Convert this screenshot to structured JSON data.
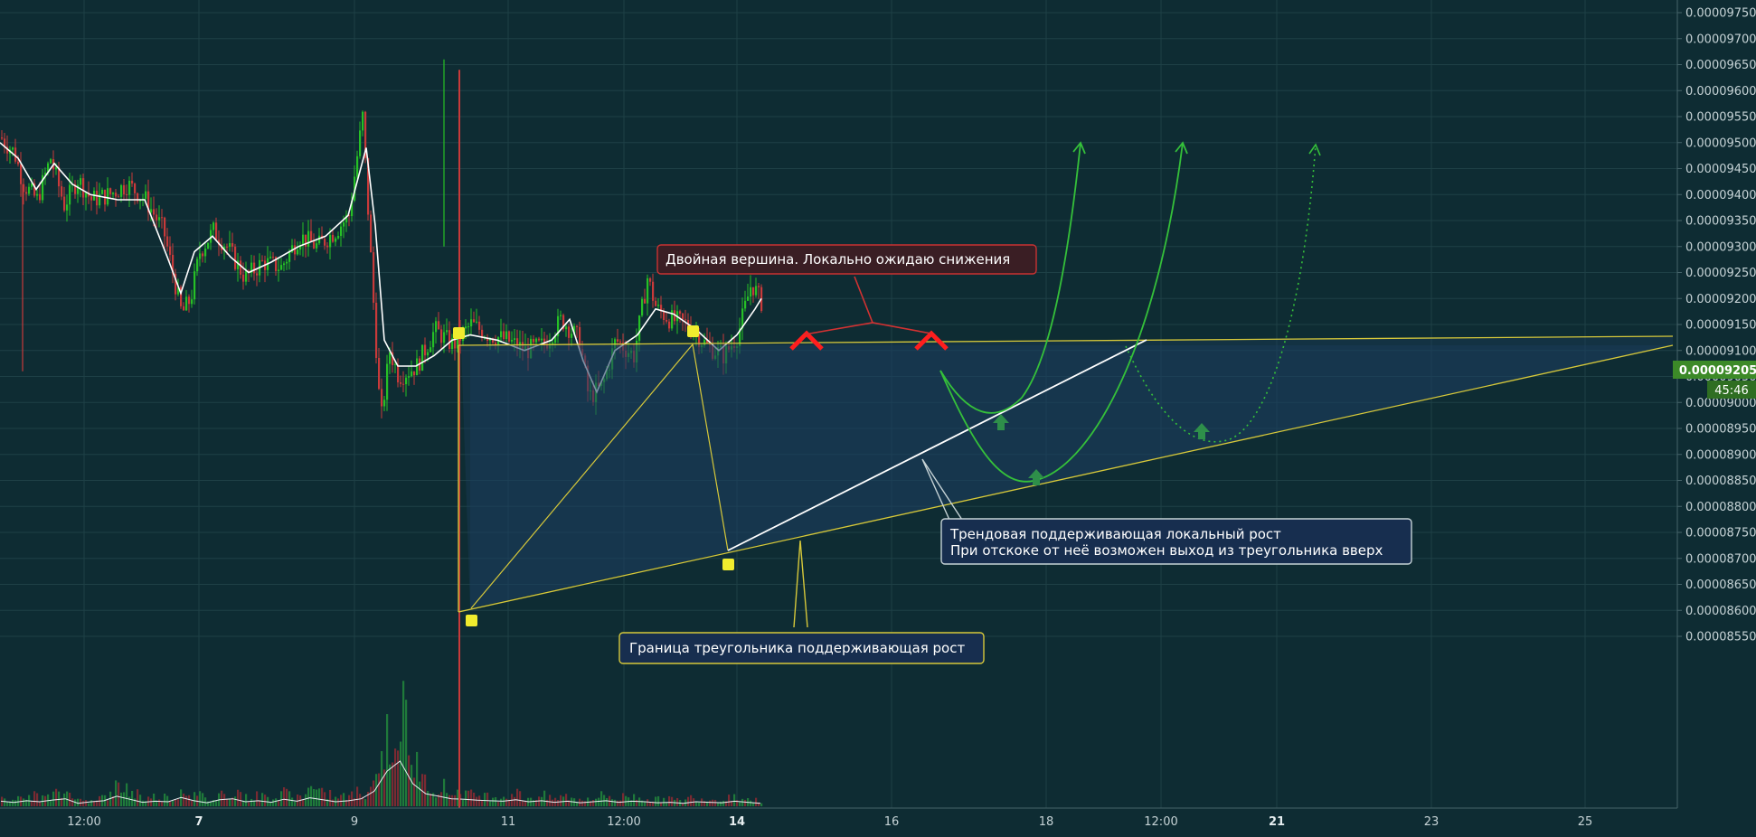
{
  "chart_data": {
    "type": "candlestick",
    "title": "",
    "price_axis": {
      "ticks": [
        "0.00009750",
        "0.00009700",
        "0.00009650",
        "0.00009600",
        "0.00009550",
        "0.00009500",
        "0.00009450",
        "0.00009400",
        "0.00009350",
        "0.00009300",
        "0.00009250",
        "0.00009200",
        "0.00009150",
        "0.00009100",
        "0.00009050",
        "0.00009000",
        "0.00008950",
        "0.00008900",
        "0.00008850",
        "0.00008800",
        "0.00008750",
        "0.00008700",
        "0.00008650",
        "0.00008600",
        "0.00008550"
      ],
      "min": 8.55e-05,
      "max": 9.75e-05
    },
    "time_axis": {
      "labels": [
        {
          "text": "12:00",
          "bold": false
        },
        {
          "text": "7",
          "bold": true
        },
        {
          "text": "9",
          "bold": false
        },
        {
          "text": "11",
          "bold": false
        },
        {
          "text": "12:00",
          "bold": false
        },
        {
          "text": "14",
          "bold": true
        },
        {
          "text": "16",
          "bold": false
        },
        {
          "text": "18",
          "bold": false
        },
        {
          "text": "12:00",
          "bold": false
        },
        {
          "text": "21",
          "bold": true
        },
        {
          "text": "23",
          "bold": false
        },
        {
          "text": "25",
          "bold": false
        }
      ]
    },
    "last_price": {
      "value": "0.00009205",
      "countdown": "45:46"
    },
    "price_path": [
      [
        0,
        9510
      ],
      [
        15,
        9480
      ],
      [
        25,
        9420
      ],
      [
        40,
        9390
      ],
      [
        55,
        9470
      ],
      [
        70,
        9380
      ],
      [
        85,
        9430
      ],
      [
        100,
        9390
      ],
      [
        120,
        9400
      ],
      [
        140,
        9420
      ],
      [
        160,
        9390
      ],
      [
        180,
        9330
      ],
      [
        200,
        9170
      ],
      [
        210,
        9200
      ],
      [
        220,
        9290
      ],
      [
        235,
        9330
      ],
      [
        250,
        9300
      ],
      [
        270,
        9240
      ],
      [
        290,
        9270
      ],
      [
        310,
        9260
      ],
      [
        330,
        9320
      ],
      [
        350,
        9300
      ],
      [
        370,
        9330
      ],
      [
        385,
        9360
      ],
      [
        400,
        9550
      ],
      [
        410,
        9250
      ],
      [
        420,
        8960
      ],
      [
        430,
        9100
      ],
      [
        440,
        9050
      ],
      [
        460,
        9070
      ],
      [
        480,
        9140
      ],
      [
        500,
        9110
      ],
      [
        520,
        9150
      ],
      [
        540,
        9130
      ],
      [
        560,
        9120
      ],
      [
        580,
        9100
      ],
      [
        600,
        9110
      ],
      [
        620,
        9160
      ],
      [
        640,
        9120
      ],
      [
        650,
        9010
      ],
      [
        665,
        9030
      ],
      [
        680,
        9120
      ],
      [
        700,
        9090
      ],
      [
        715,
        9240
      ],
      [
        725,
        9180
      ],
      [
        740,
        9160
      ],
      [
        760,
        9150
      ],
      [
        780,
        9110
      ],
      [
        800,
        9090
      ],
      [
        815,
        9130
      ],
      [
        830,
        9230
      ],
      [
        842,
        9190
      ]
    ],
    "ma_line": [
      [
        0,
        9500
      ],
      [
        20,
        9470
      ],
      [
        40,
        9410
      ],
      [
        60,
        9460
      ],
      [
        80,
        9420
      ],
      [
        100,
        9400
      ],
      [
        130,
        9390
      ],
      [
        160,
        9390
      ],
      [
        185,
        9280
      ],
      [
        200,
        9210
      ],
      [
        215,
        9290
      ],
      [
        235,
        9320
      ],
      [
        255,
        9280
      ],
      [
        275,
        9250
      ],
      [
        300,
        9270
      ],
      [
        330,
        9300
      ],
      [
        360,
        9320
      ],
      [
        385,
        9360
      ],
      [
        405,
        9490
      ],
      [
        415,
        9340
      ],
      [
        425,
        9120
      ],
      [
        440,
        9070
      ],
      [
        460,
        9070
      ],
      [
        480,
        9090
      ],
      [
        500,
        9120
      ],
      [
        520,
        9130
      ],
      [
        550,
        9120
      ],
      [
        580,
        9100
      ],
      [
        610,
        9120
      ],
      [
        630,
        9160
      ],
      [
        645,
        9080
      ],
      [
        660,
        9020
      ],
      [
        680,
        9100
      ],
      [
        705,
        9130
      ],
      [
        725,
        9180
      ],
      [
        745,
        9170
      ],
      [
        770,
        9140
      ],
      [
        795,
        9100
      ],
      [
        815,
        9130
      ],
      [
        835,
        9180
      ],
      [
        842,
        9200
      ]
    ],
    "volume_series": [
      20,
      15,
      22,
      18,
      25,
      30,
      12,
      18,
      22,
      40,
      28,
      16,
      20,
      18,
      35,
      22,
      14,
      26,
      30,
      18,
      22,
      16,
      28,
      20,
      34,
      26,
      18,
      22,
      30,
      60,
      140,
      180,
      90,
      50,
      40,
      30,
      28,
      24,
      22,
      20,
      26,
      18,
      22,
      16,
      20,
      14,
      18,
      22,
      16,
      20,
      18,
      14,
      16,
      12,
      18,
      16,
      14,
      20,
      16,
      12
    ],
    "annotations": [
      {
        "text": "Двойная вершина. Локально ожидаю снижения",
        "style": "red"
      },
      {
        "text": "Граница треугольника поддерживающая рост",
        "style": "yellow"
      },
      {
        "lines": [
          "Трендовая поддерживающая локальный рост",
          "При отскоке от неё возможен выход из треугольника вверх"
        ],
        "style": "white"
      }
    ],
    "colors": {
      "background": "#0e2c33",
      "up": "#26c026",
      "down": "#c83a3a",
      "ma": "#ffffff",
      "triangle": "#d6c83a",
      "trend": "#ffffff",
      "projection": "#35c03a",
      "last_price_badge": "#3c8a28"
    }
  }
}
